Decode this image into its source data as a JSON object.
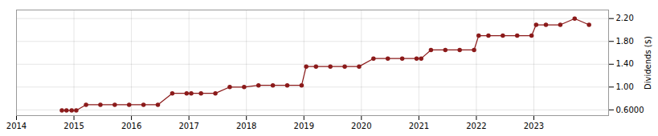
{
  "chart_data": {
    "type": "line",
    "ylabel": "Dividends ($)",
    "color": "#8b1a1a",
    "marker": "circle",
    "grid": true,
    "xlim": [
      2014.0,
      2024.3
    ],
    "xticks": [
      2014,
      2015,
      2016,
      2017,
      2018,
      2019,
      2020,
      2021,
      2022,
      2023
    ],
    "ylim": [
      0.5,
      2.35
    ],
    "yticks": [
      {
        "value": 0.6,
        "label": "0.6000"
      },
      {
        "value": 1.0,
        "label": "1.00"
      },
      {
        "value": 1.4,
        "label": "1.40"
      },
      {
        "value": 1.8,
        "label": "1.80"
      },
      {
        "value": 2.2,
        "label": "2.20"
      }
    ],
    "x": [
      2014.79,
      2014.87,
      2014.96,
      2015.04,
      2015.21,
      2015.46,
      2015.71,
      2015.96,
      2016.21,
      2016.46,
      2016.71,
      2016.96,
      2017.04,
      2017.21,
      2017.46,
      2017.71,
      2017.96,
      2018.21,
      2018.46,
      2018.71,
      2018.96,
      2019.04,
      2019.21,
      2019.46,
      2019.71,
      2019.96,
      2020.21,
      2020.46,
      2020.71,
      2020.96,
      2021.04,
      2021.21,
      2021.46,
      2021.71,
      2021.96,
      2022.04,
      2022.21,
      2022.46,
      2022.71,
      2022.96,
      2023.04,
      2023.21,
      2023.46,
      2023.71,
      2023.96
    ],
    "values": [
      0.59,
      0.59,
      0.59,
      0.59,
      0.69,
      0.69,
      0.69,
      0.69,
      0.69,
      0.69,
      0.89,
      0.89,
      0.89,
      0.89,
      0.89,
      1.0,
      1.0,
      1.03,
      1.03,
      1.03,
      1.03,
      1.36,
      1.36,
      1.36,
      1.36,
      1.36,
      1.5,
      1.5,
      1.5,
      1.5,
      1.5,
      1.65,
      1.65,
      1.65,
      1.65,
      1.9,
      1.9,
      1.9,
      1.9,
      1.9,
      2.09,
      2.09,
      2.09,
      2.2,
      2.09
    ]
  }
}
